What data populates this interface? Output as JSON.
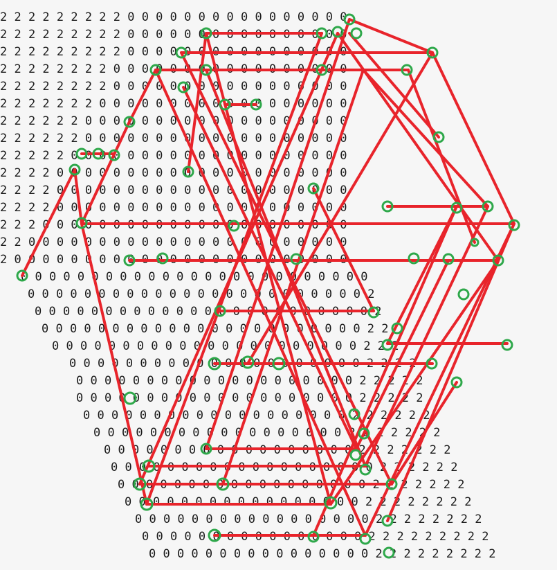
{
  "grid": {
    "rows": [
      "2 2 2 2 2 2 2 2 2 0 0 0 0 0 0 0 0 0 0 0 0 0 0 0 0",
      "2 2 2 2 2 2 2 2 2 0 0 0 0 0 0 0 0 0 0 0 0 0 0 0 0",
      "2 2 2 2 2 2 2 2 2 0 0 0 0 0 0 0 0 0 0 0 0 0 0 0 0",
      "2 2 2 2 2 2 2 2 0 0 0 0 0 0 0 0 0 0 0 0 0 0 0 0 0",
      "2 2 2 2 2 2 2 2 0 0 0 0 0 0 0 0 0 0 0 0 0 0 0 0 0",
      "2 2 2 2 2 2 2 0 0 0 0 0 0 0 0 0 0 0 0 0 0 0 0 0 0",
      "2 2 2 2 2 2 0 0 0 0 0 0 0 0 0 0 0 0 0 0 0 0 0 0 0",
      "2 2 2 2 2 2 0 0 0 0 0 0 0 0 0 0 0 0 0 0 0 0 0 0 0",
      "2 2 2 2 2 0 0 0 0 0 0 0 0 0 0 0 0 0 0 0 0 0 0 0 0",
      "2 2 2 2 0 0 0 0 0 0 0 0 0 0 0 0 0 0 0 0 0 0 0 0 0",
      "2 2 2 2 0 0 0 0 0 0 0 0 0 0 0 0 0 0 0 0 0 0 0 0 0",
      "2 2 2 2 0 0 0 0 0 0 0 0 0 0 0 0 0 0 0 0 0 0 0 0 0",
      "2 2 2 0 0 0 0 0 0 0 0 0 0 0 0 0 0 0 0 0 0 0 0 0 0",
      "2 2 0 0 0 0 0 0 0 0 0 0 0 0 0 0 0 0 0 0 0 0 0 0 0",
      "2 0 0 0 0 0 0 0 0 0 0 0 0 0 0 0 0 0 0 0 0 0 0 0 0",
      "0 0 0 0 0 0 0 0 0 0 0 0 0 0 0 0 0 0 0 0 0 0 0 0 0",
      "0 0 0 0 0 0 0 0 0 0 0 0 0 0 0 0 0 0 0 0 0 0 0 0 2",
      "0 0 0 0 0 0 0 0 0 0 0 0 0 0 0 0 0 0 0 0 0 0 0 0 2",
      "0 0 0 0 0 0 0 0 0 0 0 0 0 0 0 0 0 0 0 0 0 0 0 2 2",
      "0 0 0 0 0 0 0 0 0 0 0 0 0 0 0 0 0 0 0 0 0 0 2 2 2",
      "0 0 0 0 0 0 0 0 0 0 0 0 0 0 0 0 0 0 0 0 0 2 2 2 2",
      "0 0 0 0 0 0 0 0 0 0 0 0 0 0 0 0 0 0 0 0 2 2 2 2 2",
      "0 0 0 0 0 0 0 0 0 0 0 0 0 0 0 0 0 0 0 0 2 2 2 2 2",
      "0 0 0 0 0 0 0 0 0 0 0 0 0 0 0 0 0 0 0 2 2 2 2 2 2",
      "0 0 0 0 0 0 0 0 0 0 0 0 0 0 0 0 0 0 2 2 2 2 2 2 2",
      "0 0 0 0 0 0 0 0 0 0 0 0 0 0 0 0 0 0 2 2 2 2 2 2 2",
      "0 0 0 0 0 0 0 0 0 0 0 0 0 0 0 0 0 0 0 2 2 2 2 2 2",
      "0 0 0 0 0 0 0 0 0 0 0 0 0 0 0 0 0 0 2 2 2 2 2 2 2",
      "0 0 0 0 0 0 0 0 0 0 0 0 0 0 0 0 0 2 2 2 2 2 2 2 2",
      "0 0 0 0 0 0 0 0 0 0 0 0 0 0 0 0 0 2 2 2 2 2 2 2 2",
      "0 0 0 0 0 0 0 0 0 0 0 0 0 0 0 0 2 2 2 2 2 2 2 2 2",
      "0 0 0 0 0 0 0 0 0 0 0 0 0 0 0 0 2 2 2 2 2 2 2 2 2"
    ],
    "text_color": "#1a1a1a"
  },
  "overlay": {
    "line_color": "#e8242b",
    "circle_color": "#2ea84a"
  }
}
